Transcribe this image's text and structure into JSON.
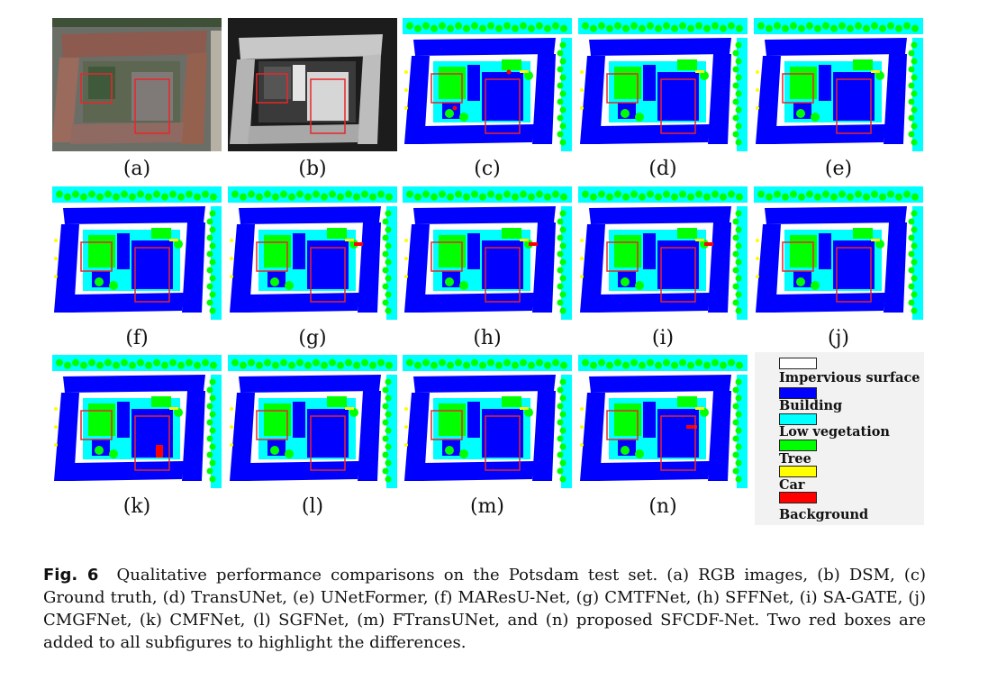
{
  "figure": {
    "panels": [
      {
        "label": "(a)",
        "kind": "rgb"
      },
      {
        "label": "(b)",
        "kind": "dsm"
      },
      {
        "label": "(c)",
        "kind": "seg"
      },
      {
        "label": "(d)",
        "kind": "seg"
      },
      {
        "label": "(e)",
        "kind": "seg"
      },
      {
        "label": "(f)",
        "kind": "seg"
      },
      {
        "label": "(g)",
        "kind": "seg"
      },
      {
        "label": "(h)",
        "kind": "seg"
      },
      {
        "label": "(i)",
        "kind": "seg"
      },
      {
        "label": "(j)",
        "kind": "seg"
      },
      {
        "label": "(k)",
        "kind": "seg"
      },
      {
        "label": "(l)",
        "kind": "seg"
      },
      {
        "label": "(m)",
        "kind": "seg"
      },
      {
        "label": "(n)",
        "kind": "seg"
      }
    ],
    "legend": [
      {
        "label": "Impervious surface",
        "color": "#ffffff"
      },
      {
        "label": "Building",
        "color": "#0000ff"
      },
      {
        "label": "Low vegetation",
        "color": "#00ffff"
      },
      {
        "label": "Tree",
        "color": "#00ff00"
      },
      {
        "label": "Car",
        "color": "#ffff00"
      },
      {
        "label": "Background",
        "color": "#ff0000"
      }
    ],
    "highlight_color": "#e8262b"
  },
  "caption": {
    "fig_label": "Fig. 6",
    "text": "Qualitative performance comparisons on the Potsdam test set. (a) RGB images, (b) DSM, (c) Ground truth, (d) TransUNet, (e) UNetFormer, (f) MAResU-Net, (g) CMTFNet, (h) SFFNet, (i) SA-GATE, (j) CMGFNet, (k) CMFNet, (l) SGFNet, (m) FTransUNet, and (n) proposed SFCDF-Net. Two red boxes are added to all subfigures to highlight the differences."
  }
}
